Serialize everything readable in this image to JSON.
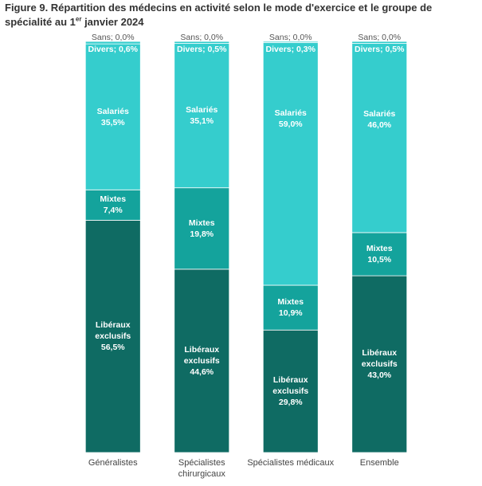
{
  "chart_data": {
    "type": "stacked-bar",
    "title": [
      "Figure 9. Répartition des médecins en activité selon le mode d'exercice et le groupe de spécialité au 1",
      "er",
      " janvier 2024"
    ],
    "categories": [
      "Généralistes",
      "Spécialistes chirurgicaux",
      "Spécialistes médicaux",
      "Ensemble"
    ],
    "ylim": [
      0,
      100
    ],
    "label_separator": "; ",
    "series": [
      {
        "name": "Libéraux exclusifs",
        "color": "#0f6b63",
        "values": [
          56.5,
          44.6,
          29.8,
          43.0
        ],
        "value_labels": [
          "56,5%",
          "44,6%",
          "29,8%",
          "43,0%"
        ]
      },
      {
        "name": "Mixtes",
        "color": "#14a39c",
        "values": [
          7.4,
          19.8,
          10.9,
          10.5
        ],
        "value_labels": [
          "7,4%",
          "19,8%",
          "10,9%",
          "10,5%"
        ]
      },
      {
        "name": "Salariés",
        "color": "#35cdcd",
        "values": [
          35.5,
          35.1,
          59.0,
          46.0
        ],
        "value_labels": [
          "35,5%",
          "35,1%",
          "59,0%",
          "46,0%"
        ]
      },
      {
        "name": "Divers",
        "color": "#35cdcd",
        "values": [
          0.6,
          0.5,
          0.3,
          0.5
        ],
        "value_labels": [
          "0,6%",
          "0,5%",
          "0,3%",
          "0,5%"
        ]
      },
      {
        "name": "Sans",
        "color": "#e8a23a",
        "values": [
          0.0,
          0.0,
          0.0,
          0.0
        ],
        "value_labels": [
          "0,0%",
          "0,0%",
          "0,0%",
          "0,0%"
        ]
      }
    ]
  }
}
